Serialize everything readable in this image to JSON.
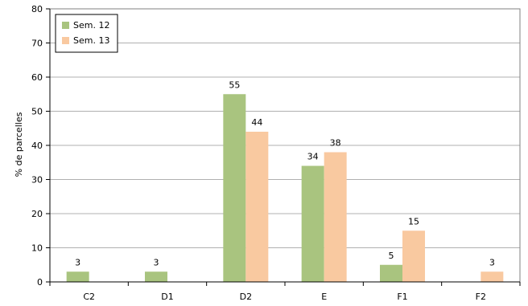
{
  "chart_data": {
    "type": "bar",
    "categories": [
      "C2",
      "D1",
      "D2",
      "E",
      "F1",
      "F2"
    ],
    "series": [
      {
        "name": "Sem. 12",
        "values": [
          3,
          3,
          55,
          34,
          5,
          null
        ],
        "labels": [
          "3",
          "3",
          "55",
          "34",
          "5",
          ""
        ],
        "color": "#a9c47f"
      },
      {
        "name": "Sem. 13",
        "values": [
          null,
          null,
          44,
          38,
          15,
          3
        ],
        "labels": [
          "",
          "",
          "44",
          "38",
          "15",
          "3"
        ],
        "color": "#f9c9a0"
      }
    ],
    "ylabel": "% de parcelles",
    "ylim": [
      0,
      80
    ],
    "yticks": [
      0,
      10,
      20,
      30,
      40,
      50,
      60,
      70,
      80
    ],
    "grid": true,
    "legend": "top-left"
  }
}
